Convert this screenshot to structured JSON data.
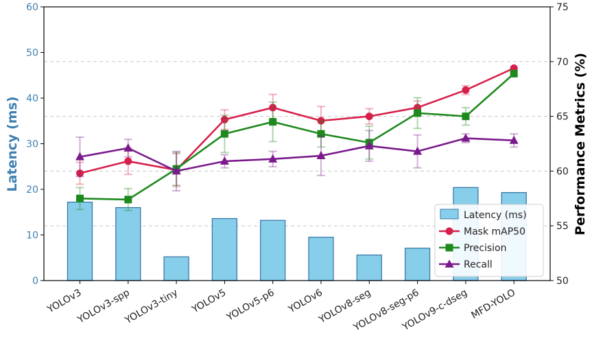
{
  "chart_data": {
    "type": "bar+line",
    "categories": [
      "YOLOv3",
      "YOLOv3-spp",
      "YOLOv3-tiny",
      "YOLOv5",
      "YOLOv5-p6",
      "YOLOv6",
      "YOLOv8-seg",
      "YOLOv8-seg-p6",
      "YOLOv9-c-dseg",
      "MFD-YOLO"
    ],
    "left_axis": {
      "label": "Latency (ms)",
      "range": [
        0,
        60
      ],
      "ticks": [
        "0",
        "10",
        "20",
        "30",
        "40",
        "50",
        "60"
      ],
      "color": "#3d7fb0"
    },
    "right_axis": {
      "label": "Performance Metrics (%)",
      "range": [
        50,
        75
      ],
      "ticks": [
        "50",
        "55",
        "60",
        "65",
        "70",
        "75"
      ]
    },
    "bars": {
      "name": "Latency (ms)",
      "values": [
        17.2,
        16.0,
        5.2,
        13.6,
        13.2,
        9.5,
        5.6,
        7.1,
        20.4,
        19.3
      ],
      "color": "#87ceeb",
      "edge": "#3b78a8"
    },
    "series": [
      {
        "name": "Mask mAP50",
        "color": "#d6204b",
        "marker": "circle",
        "values": [
          59.8,
          60.9,
          60.1,
          64.7,
          65.8,
          64.6,
          65.0,
          65.8,
          67.4,
          69.4
        ],
        "errors": [
          1.0,
          1.2,
          1.5,
          0.9,
          1.2,
          1.3,
          0.7,
          0.6,
          0.4,
          0.0
        ]
      },
      {
        "name": "Precision",
        "color": "#1e8a1e",
        "marker": "square",
        "values": [
          57.5,
          57.4,
          60.2,
          63.4,
          64.5,
          63.4,
          62.6,
          65.3,
          65.0,
          68.9
        ],
        "errors": [
          1.0,
          1.0,
          1.5,
          1.7,
          1.8,
          1.2,
          1.5,
          1.4,
          0.8,
          0.0
        ]
      },
      {
        "name": "Recall",
        "color": "#7a1a8c",
        "marker": "triangle",
        "values": [
          61.3,
          62.1,
          60.0,
          60.9,
          61.1,
          61.4,
          62.3,
          61.8,
          63.0,
          62.8
        ],
        "errors": [
          1.8,
          0.8,
          1.8,
          0.6,
          0.7,
          1.8,
          1.4,
          1.5,
          0.4,
          0.6
        ]
      }
    ],
    "grid": "horizontal dashed",
    "legend": [
      "Latency (ms)",
      "Mask mAP50",
      "Precision",
      "Recall"
    ],
    "legend_position": "bottom-right"
  }
}
